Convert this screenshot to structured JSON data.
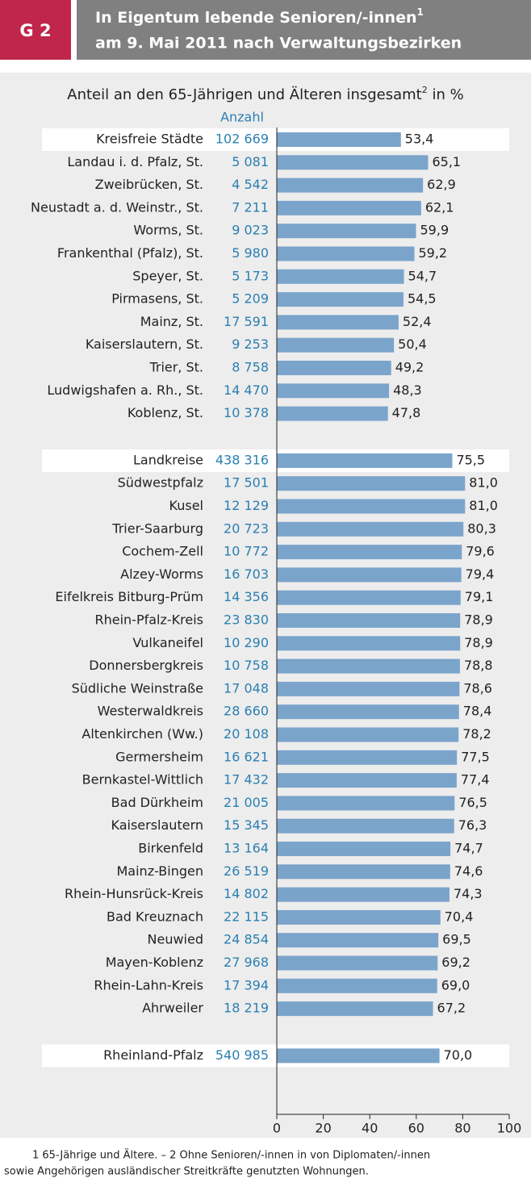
{
  "chart_data": {
    "type": "bar",
    "figure_label": "G 2",
    "title_line1": "In Eigentum lebende Senioren/-innen",
    "title_line1_sup": "1",
    "title_line2": "am 9. Mai 2011 nach Verwaltungsbezirken",
    "subtitle": "Anteil an den 65-Jährigen und Älteren insgesamt",
    "subtitle_sup": "2",
    "subtitle_unit": " in %",
    "count_header": "Anzahl",
    "color": "#7ba4cb",
    "count_color": "#2a7fb2",
    "xlim": [
      0,
      100
    ],
    "xticks": [
      0,
      20,
      40,
      60,
      80,
      100
    ],
    "groups": [
      {
        "categories": [
          "Kreisfreie Städte",
          "Landau i. d. Pfalz, St.",
          "Zweibrücken, St.",
          "Neustadt a. d. Weinstr., St.",
          "Worms, St.",
          "Frankenthal (Pfalz), St.",
          "Speyer, St.",
          "Pirmasens, St.",
          "Mainz, St.",
          "Kaiserslautern, St.",
          "Trier, St.",
          "Ludwigshafen a. Rh., St.",
          "Koblenz, St."
        ],
        "counts": [
          "102 669",
          "5 081",
          "4 542",
          "7 211",
          "9 023",
          "5 980",
          "5 173",
          "5 209",
          "17 591",
          "9 253",
          "8 758",
          "14 470",
          "10 378"
        ],
        "values": [
          53.4,
          65.1,
          62.9,
          62.1,
          59.9,
          59.2,
          54.7,
          54.5,
          52.4,
          50.4,
          49.2,
          48.3,
          47.8
        ],
        "value_labels": [
          "53,4",
          "65,1",
          "62,9",
          "62,1",
          "59,9",
          "59,2",
          "54,7",
          "54,5",
          "52,4",
          "50,4",
          "49,2",
          "48,3",
          "47,8"
        ]
      },
      {
        "categories": [
          "Landkreise",
          "Südwestpfalz",
          "Kusel",
          "Trier-Saarburg",
          "Cochem-Zell",
          "Alzey-Worms",
          "Eifelkreis Bitburg-Prüm",
          "Rhein-Pfalz-Kreis",
          "Vulkaneifel",
          "Donnersbergkreis",
          "Südliche Weinstraße",
          "Westerwaldkreis",
          "Altenkirchen (Ww.)",
          "Germersheim",
          "Bernkastel-Wittlich",
          "Bad Dürkheim",
          "Kaiserslautern",
          "Birkenfeld",
          "Mainz-Bingen",
          "Rhein-Hunsrück-Kreis",
          "Bad Kreuznach",
          "Neuwied",
          "Mayen-Koblenz",
          "Rhein-Lahn-Kreis",
          "Ahrweiler"
        ],
        "counts": [
          "438 316",
          "17 501",
          "12 129",
          "20 723",
          "10 772",
          "16 703",
          "14 356",
          "23 830",
          "10 290",
          "10 758",
          "17 048",
          "28 660",
          "20 108",
          "16 621",
          "17 432",
          "21 005",
          "15 345",
          "13 164",
          "26 519",
          "14 802",
          "22 115",
          "24 854",
          "27 968",
          "17 394",
          "18 219"
        ],
        "values": [
          75.5,
          81.0,
          81.0,
          80.3,
          79.6,
          79.4,
          79.1,
          78.9,
          78.9,
          78.8,
          78.6,
          78.4,
          78.2,
          77.5,
          77.4,
          76.5,
          76.3,
          74.7,
          74.6,
          74.3,
          70.4,
          69.5,
          69.2,
          69.0,
          67.2
        ],
        "value_labels": [
          "75,5",
          "81,0",
          "81,0",
          "80,3",
          "79,6",
          "79,4",
          "79,1",
          "78,9",
          "78,9",
          "78,8",
          "78,6",
          "78,4",
          "78,2",
          "77,5",
          "77,4",
          "76,5",
          "76,3",
          "74,7",
          "74,6",
          "74,3",
          "70,4",
          "69,5",
          "69,2",
          "69,0",
          "67,2"
        ]
      },
      {
        "categories": [
          "Rheinland-Pfalz"
        ],
        "counts": [
          "540 985"
        ],
        "values": [
          70.0
        ],
        "value_labels": [
          "70,0"
        ]
      }
    ],
    "footnote_line1": "1 65-Jährige und Ältere. – 2 Ohne Senioren/-innen in von Diplomaten/-innen",
    "footnote_line2": "sowie Angehörigen ausländischer Streitkräfte genutzten Wohnungen."
  }
}
